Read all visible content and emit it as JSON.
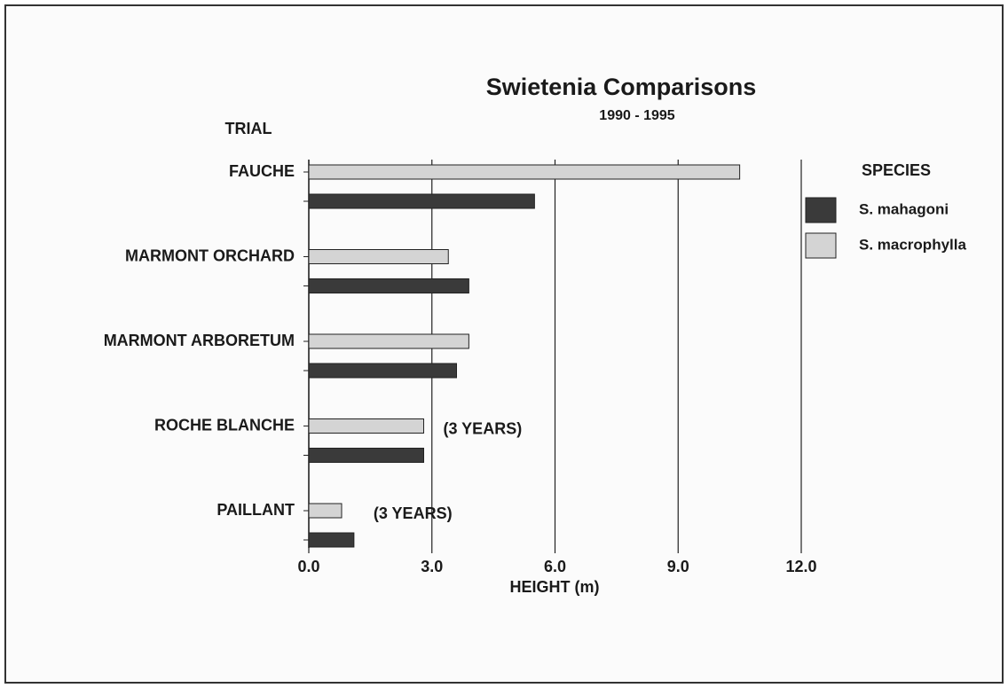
{
  "chart_data": {
    "type": "hbar",
    "title": "Swietenia Comparisons",
    "subtitle": "1990 - 1995",
    "y_axis_label": "TRIAL",
    "x_axis_label": "HEIGHT (m)",
    "legend_title": "SPECIES",
    "categories": [
      "FAUCHE",
      "MARMONT ORCHARD",
      "MARMONT ARBORETUM",
      "ROCHE BLANCHE",
      "PAILLANT"
    ],
    "series": [
      {
        "name": "S. mahagoni",
        "color": "#3a3a3a",
        "values": [
          5.5,
          3.9,
          3.6,
          2.8,
          1.1
        ]
      },
      {
        "name": "S. macrophylla",
        "color": "#d4d4d4",
        "values": [
          10.5,
          3.4,
          3.9,
          2.8,
          0.8
        ]
      }
    ],
    "annotations": [
      "(3 YEARS)",
      "(3 YEARS)"
    ],
    "xlim": [
      0,
      12
    ],
    "xticks": [
      {
        "value": 0,
        "label": "0.0"
      },
      {
        "value": 3,
        "label": "3.0"
      },
      {
        "value": 6,
        "label": "6.0"
      },
      {
        "value": 9,
        "label": "9.0"
      },
      {
        "value": 12,
        "label": "12.0"
      }
    ],
    "grid": true,
    "legend": "right"
  }
}
